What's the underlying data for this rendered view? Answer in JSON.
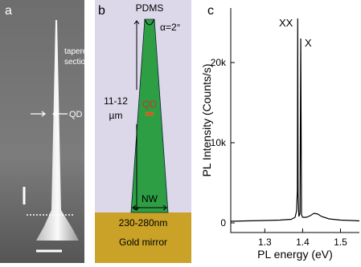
{
  "panel_a": {
    "label": "a",
    "tapered_label": [
      "tapered",
      "section"
    ],
    "qd_label": "QD"
  },
  "panel_b": {
    "label": "b",
    "top_label": "PDMS",
    "angle_label": "α=2°",
    "height_label": [
      "11-12",
      "µm"
    ],
    "qd_label": "QD",
    "nw_label": "NW",
    "width_label": "230-280nm",
    "mirror_label": "Gold mirror"
  },
  "chart_data": {
    "type": "line",
    "panel_label": "c",
    "x_label": "PL energy (eV)",
    "y_label": "PL Intensity (Counts/s)",
    "x": [
      1.21,
      1.25,
      1.3,
      1.34,
      1.37,
      1.38,
      1.384,
      1.386,
      1.387,
      1.388,
      1.39,
      1.393,
      1.395,
      1.397,
      1.4,
      1.41,
      1.42,
      1.43,
      1.44,
      1.45,
      1.47,
      1.5,
      1.53,
      1.55
    ],
    "series": [
      {
        "color": "#000000",
        "values": [
          200,
          250,
          300,
          350,
          450,
          700,
          1500,
          4000,
          25500,
          3500,
          800,
          1200,
          23000,
          1000,
          700,
          700,
          900,
          1200,
          1100,
          800,
          500,
          350,
          300,
          250
        ]
      }
    ],
    "xlim": [
      1.21,
      1.55
    ],
    "xticks": [
      1.3,
      1.4,
      1.5
    ],
    "ylim": [
      -1200,
      26800
    ],
    "yticks": [
      {
        "value": 0,
        "label": "0"
      },
      {
        "value": 10000,
        "label": "10k"
      },
      {
        "value": 20000,
        "label": "20k"
      }
    ],
    "annotations": [
      {
        "text": "XX",
        "x": 1.387,
        "y": 25500
      },
      {
        "text": "X",
        "x": 1.395,
        "y": 23000
      }
    ]
  }
}
